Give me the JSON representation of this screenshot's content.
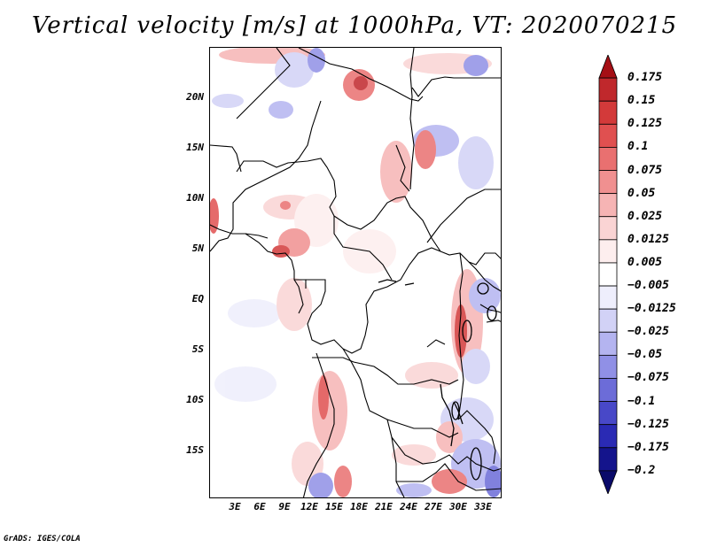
{
  "title": "Vertical velocity [m/s] at 1000hPa, VT: 2020070215",
  "credit": "GrADS: IGES/COLA",
  "map": {
    "lat_labels": [
      "20N",
      "15N",
      "10N",
      "5N",
      "EQ",
      "5S",
      "10S",
      "15S"
    ],
    "lon_labels": [
      "3E",
      "6E",
      "9E",
      "12E",
      "15E",
      "18E",
      "21E",
      "24E",
      "27E",
      "30E",
      "33E"
    ]
  },
  "colorbar": {
    "labels": [
      "0.175",
      "0.15",
      "0.125",
      "0.1",
      "0.075",
      "0.05",
      "0.025",
      "0.0125",
      "0.005",
      "−0.005",
      "−0.0125",
      "−0.025",
      "−0.05",
      "−0.075",
      "−0.1",
      "−0.125",
      "−0.175",
      "−0.2"
    ],
    "colors": [
      "#a50f15",
      "#c0282c",
      "#d33a3a",
      "#e05050",
      "#e97070",
      "#f09090",
      "#f6b4b4",
      "#fad4d4",
      "#fdeeee",
      "#ffffff",
      "#eeeefc",
      "#d2d2f6",
      "#b4b4f0",
      "#9090e6",
      "#6c6cd8",
      "#4848c8",
      "#2a2ab4",
      "#14148c",
      "#0a0a6a"
    ]
  }
}
